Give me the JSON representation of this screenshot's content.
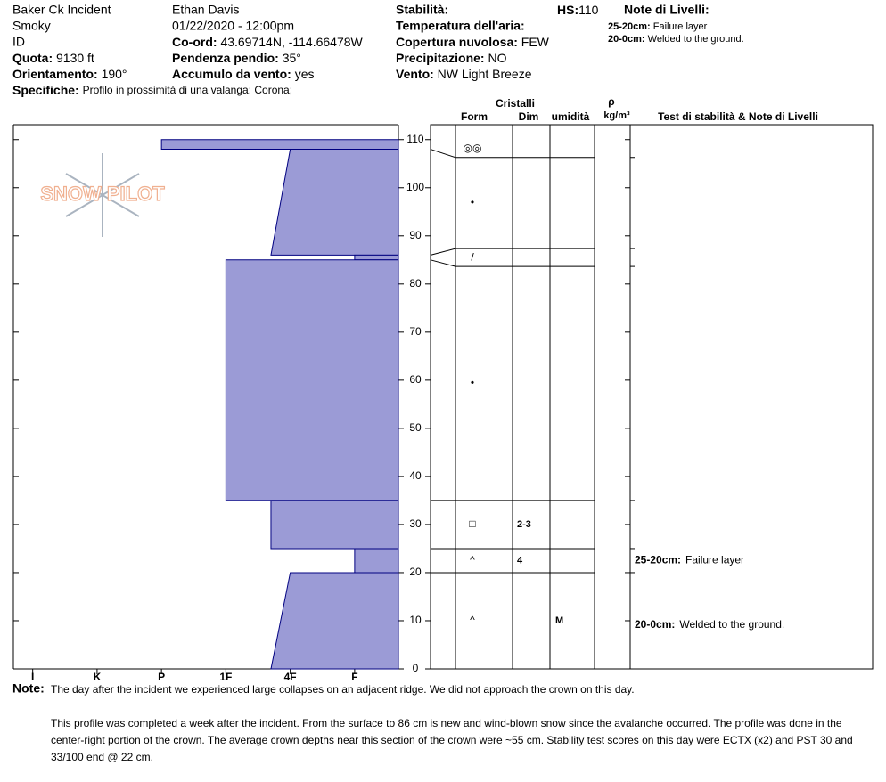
{
  "header": {
    "incident": "Baker Ck Incident",
    "range": "Smoky",
    "state": "ID",
    "elevation": {
      "label": "Quota:",
      "value": "9130 ft"
    },
    "aspect": {
      "label": "Orientamento:",
      "value": "190°"
    },
    "specifics": {
      "label": "Specifiche:",
      "value": "Profilo in prossimità di una valanga: Corona;"
    },
    "observer": "Ethan Davis",
    "datetime": "01/22/2020 - 12:00pm",
    "coords": {
      "label": "Co-ord:",
      "value": "43.69714N, -114.66478W"
    },
    "slope": {
      "label": "Pendenza pendio:",
      "value": "35°"
    },
    "wind_loading": {
      "label": "Accumulo da vento:",
      "value": "yes"
    },
    "stability": "Stabilità:",
    "hs": {
      "label": "HS:",
      "value": "110"
    },
    "air_temp": "Temperatura dell'aria:",
    "sky": {
      "label": "Copertura nuvolosa:",
      "value": "FEW"
    },
    "precip": {
      "label": "Precipitazione:",
      "value": "NO"
    },
    "wind": {
      "label": "Vento:",
      "value": "NW Light Breeze"
    },
    "layer_notes_title": "Note di Livelli:",
    "layer_notes": [
      {
        "label": "25-20cm:",
        "value": "Failure layer"
      },
      {
        "label": "20-0cm:",
        "value": "Welded to the ground."
      }
    ]
  },
  "logo": "SNOW PILOT",
  "chart_data": {
    "type": "snow-profile",
    "color": "#9b9bd6",
    "ylim": [
      0,
      113.1
    ],
    "yticks": [
      0,
      10,
      20,
      30,
      40,
      50,
      60,
      70,
      80,
      90,
      100,
      110
    ],
    "xlim": [
      6.3,
      0.32
    ],
    "xticks": [
      {
        "value": 6,
        "label": "I"
      },
      {
        "value": 5,
        "label": "K"
      },
      {
        "value": 4,
        "label": "P"
      },
      {
        "value": 3,
        "label": "1F"
      },
      {
        "value": 2,
        "label": "4F"
      },
      {
        "value": 1,
        "label": "F"
      }
    ],
    "table_headers": {
      "crystals": "Cristalli",
      "form": "Form",
      "size": "Dim",
      "moisture": "umidità",
      "density_symbol": "ρ",
      "density_unit": "kg/m³",
      "tests": "Test di stabilità & Note di Livelli"
    },
    "layers": [
      {
        "top": 110,
        "bottom": 108,
        "hardness_top": 4,
        "hardness_bottom": 4,
        "form": "◎◎"
      },
      {
        "top": 108,
        "bottom": 86,
        "hardness_top": 2,
        "hardness_bottom": 2.3,
        "form": "•"
      },
      {
        "top": 86,
        "bottom": 85,
        "hardness_top": 1,
        "hardness_bottom": 1,
        "form": "/"
      },
      {
        "top": 85,
        "bottom": 35,
        "hardness_top": 3,
        "hardness_bottom": 3,
        "form": "•"
      },
      {
        "top": 35,
        "bottom": 25,
        "hardness_top": 2.3,
        "hardness_bottom": 2.3,
        "form": "□",
        "size": "2-3"
      },
      {
        "top": 25,
        "bottom": 20,
        "hardness_top": 1,
        "hardness_bottom": 1,
        "form": "^",
        "size": "4"
      },
      {
        "top": 20,
        "bottom": 0,
        "hardness_top": 2,
        "hardness_bottom": 2.3,
        "form": "^",
        "moisture": "M"
      }
    ]
  },
  "footer": {
    "label": "Note:",
    "note": "The day after the incident we experienced large collapses on an adjacent ridge. We did not approach the crown on this day.",
    "details": "This profile was completed a week after the incident. From the surface to 86 cm is new and wind-blown snow since the avalanche occurred. The profile was done in the center-right portion of the crown. The average crown depths near this section of the crown were ~55 cm.  Stability test scores on this day were ECTX (x2) and PST 30 and 33/100 end @ 22 cm."
  }
}
